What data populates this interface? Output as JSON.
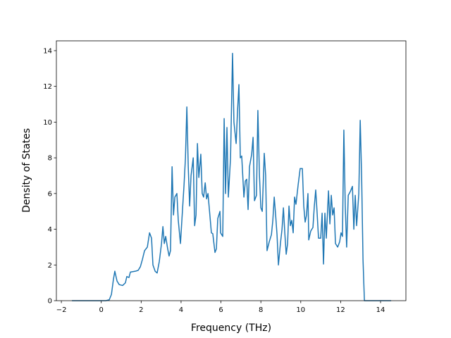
{
  "chart_data": {
    "type": "line",
    "x_label": "Frequency (THz)",
    "y_label": "Density of States",
    "x": [
      -1.47,
      0.23,
      0.4,
      0.51,
      0.61,
      0.68,
      0.79,
      0.9,
      1.07,
      1.21,
      1.28,
      1.39,
      1.46,
      1.71,
      1.85,
      1.96,
      2.06,
      2.17,
      2.31,
      2.42,
      2.52,
      2.59,
      2.7,
      2.8,
      2.91,
      3.02,
      3.09,
      3.16,
      3.23,
      3.33,
      3.4,
      3.47,
      3.55,
      3.62,
      3.69,
      3.79,
      3.86,
      3.97,
      4.04,
      4.15,
      4.22,
      4.29,
      4.36,
      4.43,
      4.5,
      4.61,
      4.68,
      4.75,
      4.82,
      4.89,
      4.99,
      5.06,
      5.13,
      5.21,
      5.28,
      5.35,
      5.42,
      5.52,
      5.59,
      5.7,
      5.77,
      5.84,
      5.95,
      5.98,
      6.09,
      6.16,
      6.23,
      6.3,
      6.37,
      6.48,
      6.58,
      6.65,
      6.76,
      6.83,
      6.9,
      6.97,
      7.04,
      7.15,
      7.22,
      7.29,
      7.36,
      7.43,
      7.54,
      7.61,
      7.68,
      7.78,
      7.85,
      7.93,
      8.0,
      8.07,
      8.17,
      8.24,
      8.31,
      8.42,
      8.53,
      8.6,
      8.67,
      8.74,
      8.81,
      8.88,
      8.98,
      9.06,
      9.13,
      9.2,
      9.27,
      9.34,
      9.41,
      9.48,
      9.55,
      9.62,
      9.69,
      9.76,
      9.87,
      9.97,
      10.08,
      10.15,
      10.22,
      10.29,
      10.36,
      10.4,
      10.5,
      10.61,
      10.68,
      10.75,
      10.82,
      10.89,
      11.0,
      11.07,
      11.14,
      11.21,
      11.28,
      11.39,
      11.46,
      11.53,
      11.6,
      11.67,
      11.74,
      11.85,
      11.95,
      12.02,
      12.09,
      12.16,
      12.23,
      12.3,
      12.38,
      12.48,
      12.59,
      12.66,
      12.73,
      12.8,
      12.91,
      12.98,
      13.05,
      13.12,
      13.19,
      14.53
    ],
    "series": [
      {
        "color": "#1f77b4",
        "values": [
          0,
          0,
          0.05,
          0.35,
          1.2,
          1.65,
          1.1,
          0.9,
          0.85,
          1.0,
          1.35,
          1.3,
          1.6,
          1.65,
          1.7,
          1.9,
          2.3,
          2.8,
          3.0,
          3.8,
          3.5,
          2.0,
          1.65,
          1.55,
          2.2,
          3.2,
          4.15,
          3.2,
          3.6,
          2.9,
          2.5,
          2.8,
          7.5,
          4.8,
          5.8,
          6.0,
          4.5,
          3.2,
          4.5,
          6.5,
          8.0,
          10.85,
          7.5,
          5.3,
          7.0,
          8.0,
          4.2,
          4.8,
          8.8,
          6.9,
          8.2,
          6.0,
          5.8,
          6.6,
          5.7,
          6.0,
          5.1,
          3.8,
          3.75,
          2.7,
          2.9,
          4.6,
          5.0,
          3.8,
          3.6,
          10.2,
          6.0,
          9.7,
          5.8,
          8.0,
          13.85,
          10.0,
          8.8,
          10.6,
          12.1,
          8.0,
          8.1,
          5.8,
          6.7,
          6.8,
          5.1,
          7.5,
          8.2,
          9.15,
          5.6,
          5.9,
          10.65,
          7.0,
          5.2,
          5.0,
          8.25,
          7.0,
          2.8,
          3.3,
          3.7,
          4.5,
          5.8,
          4.8,
          3.7,
          2.0,
          3.2,
          4.0,
          5.2,
          3.8,
          2.6,
          3.2,
          5.3,
          4.2,
          4.5,
          3.8,
          5.8,
          5.4,
          6.5,
          7.4,
          7.4,
          5.3,
          4.4,
          4.8,
          6.0,
          3.4,
          3.9,
          4.1,
          5.3,
          6.2,
          4.9,
          3.5,
          3.5,
          4.9,
          2.05,
          4.9,
          3.5,
          6.15,
          4.3,
          5.9,
          4.8,
          5.2,
          3.2,
          3.0,
          3.3,
          3.8,
          3.6,
          9.55,
          5.3,
          3.0,
          5.9,
          6.1,
          6.4,
          4.0,
          5.9,
          4.2,
          6.0,
          10.1,
          7.0,
          2.3,
          0,
          0
        ]
      }
    ],
    "xlim": [
      -2.25,
      15.27
    ],
    "ylim": [
      0,
      14.55
    ],
    "xticks": [
      {
        "value": -2,
        "label": "−2"
      },
      0,
      2,
      4,
      6,
      8,
      10,
      12,
      14
    ],
    "yticks": [
      0,
      2,
      4,
      6,
      8,
      10,
      12,
      14
    ]
  }
}
